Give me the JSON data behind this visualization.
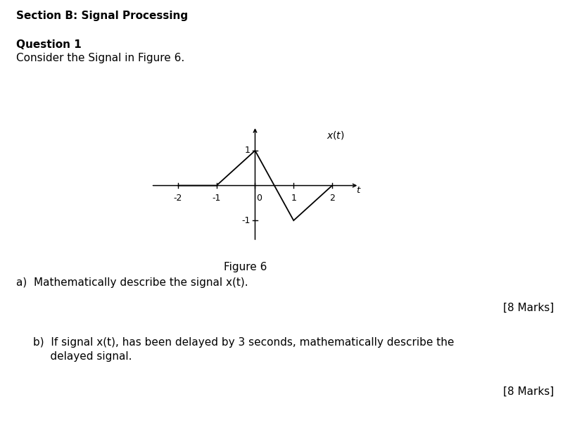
{
  "title": "Section B: Signal Processing",
  "question1_bold": "Question 1",
  "question1_text": "Consider the Signal in Figure 6.",
  "figure_caption": "Figure 6",
  "part_a": "a)  Mathematically describe the signal x(t).",
  "marks_a": "[8 Marks]",
  "part_b_line1": "b)  If signal x(t), has been delayed by 3 seconds, mathematically describe the",
  "part_b_line2": "     delayed signal.",
  "marks_b": "[8 Marks]",
  "signal_t": [
    -2,
    -1,
    0,
    1,
    2
  ],
  "signal_x": [
    0,
    0,
    1,
    -1,
    0
  ],
  "xlim": [
    -2.7,
    2.7
  ],
  "ylim": [
    -1.6,
    1.7
  ],
  "xticks": [
    -2,
    -1,
    0,
    1,
    2
  ],
  "yticks": [
    -1,
    1
  ],
  "background": "#ffffff",
  "signal_color": "#000000",
  "axis_color": "#000000",
  "text_color": "#000000",
  "font_size_main": 11,
  "font_size_tick": 9,
  "fig_width": 8.1,
  "fig_height": 6.18
}
